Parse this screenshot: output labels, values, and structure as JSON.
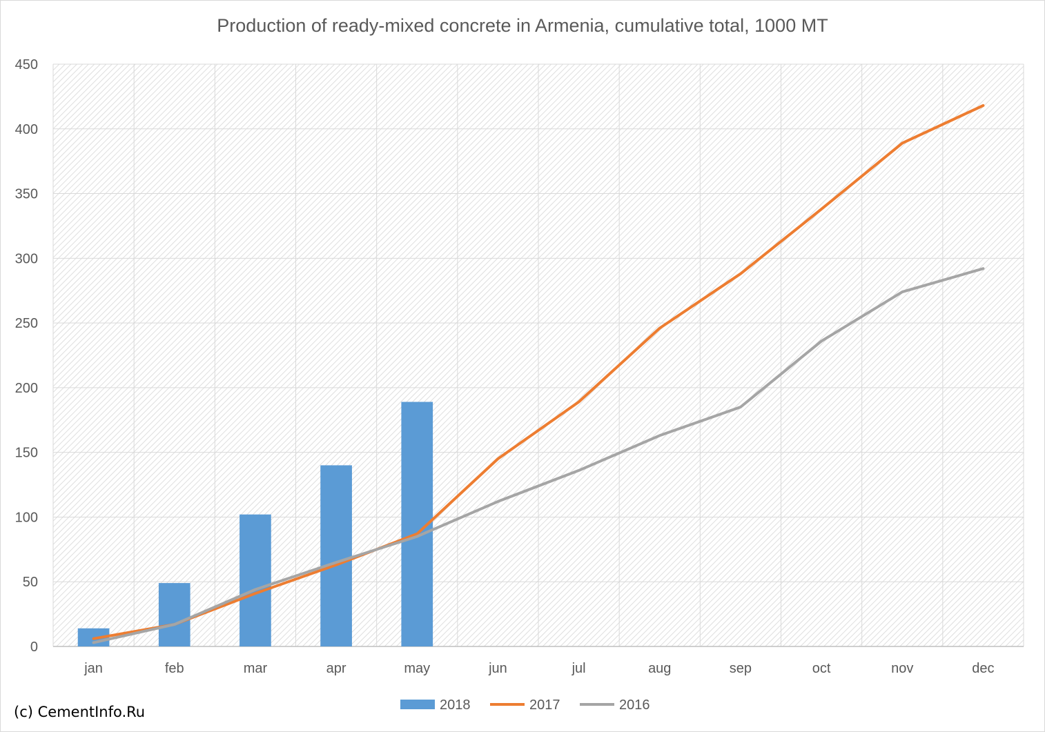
{
  "chart_data": {
    "type": "bar",
    "title": "Production of ready-mixed concrete in Armenia, cumulative total, 1000 MT",
    "categories": [
      "jan",
      "feb",
      "mar",
      "apr",
      "may",
      "jun",
      "jul",
      "aug",
      "sep",
      "oct",
      "nov",
      "dec"
    ],
    "ylim": [
      0,
      450
    ],
    "yticks": [
      0,
      50,
      100,
      150,
      200,
      250,
      300,
      350,
      400,
      450
    ],
    "grid": true,
    "legend_position": "bottom",
    "series": [
      {
        "name": "2018",
        "kind": "bar",
        "color": "#5b9bd5",
        "values": [
          14,
          49,
          102,
          140,
          189,
          null,
          null,
          null,
          null,
          null,
          null,
          null
        ]
      },
      {
        "name": "2017",
        "kind": "line",
        "color": "#ed7d31",
        "values": [
          6,
          17,
          41,
          63,
          87,
          145,
          189,
          246,
          288,
          338,
          389,
          418
        ]
      },
      {
        "name": "2016",
        "kind": "line",
        "color": "#a5a5a5",
        "values": [
          3,
          17,
          44,
          65,
          85,
          112,
          136,
          163,
          185,
          236,
          274,
          292
        ]
      }
    ]
  },
  "credit": "(c) CementInfo.Ru"
}
